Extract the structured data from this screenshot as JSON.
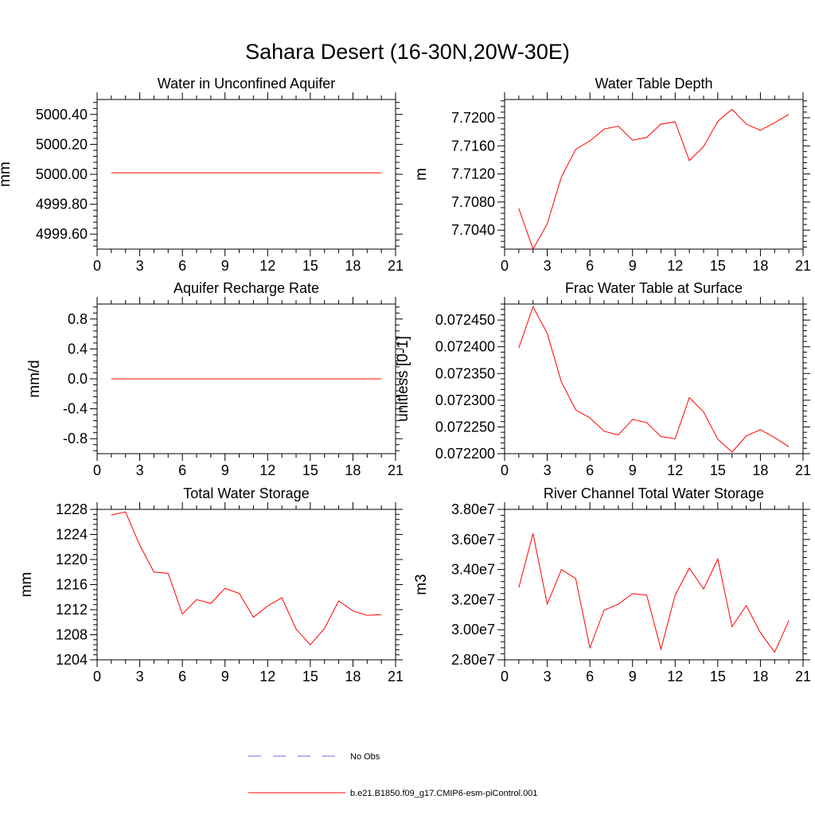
{
  "page": {
    "title": "Sahara Desert (16-30N,20W-30E)"
  },
  "legend": {
    "items": [
      {
        "label": "No Obs",
        "color": "#6b6bd6",
        "dash": true
      },
      {
        "label": "b.e21.B1850.f09_g17.CMIP6-esm-piControl.001",
        "color": "#ff0000",
        "dash": false
      }
    ]
  },
  "chart_data": [
    {
      "type": "line",
      "title": "Water in Unconfined Aquifer",
      "xlabel": "",
      "ylabel": "mm",
      "xlim": [
        0,
        21
      ],
      "ylim": [
        4999.5,
        5000.5
      ],
      "xticks": [
        0,
        3,
        6,
        9,
        12,
        15,
        18,
        21
      ],
      "yticks": [
        4999.6,
        4999.8,
        5000.0,
        5000.2,
        5000.4
      ],
      "ytick_labels": [
        "4999.60",
        "4999.80",
        "5000.00",
        "5000.20",
        "5000.40"
      ],
      "x": [
        1,
        2,
        3,
        4,
        5,
        6,
        7,
        8,
        9,
        10,
        11,
        12,
        13,
        14,
        15,
        16,
        17,
        18,
        19,
        20
      ],
      "series": [
        {
          "color": "#ff0000",
          "values": [
            5000.01,
            5000.01,
            5000.01,
            5000.01,
            5000.01,
            5000.01,
            5000.01,
            5000.01,
            5000.01,
            5000.01,
            5000.01,
            5000.01,
            5000.01,
            5000.01,
            5000.01,
            5000.01,
            5000.01,
            5000.01,
            5000.01,
            5000.01
          ]
        }
      ]
    },
    {
      "type": "line",
      "title": "Water Table Depth",
      "xlabel": "",
      "ylabel": "m",
      "xlim": [
        0,
        21
      ],
      "ylim": [
        7.7013,
        7.7226
      ],
      "xticks": [
        0,
        3,
        6,
        9,
        12,
        15,
        18,
        21
      ],
      "yticks": [
        7.704,
        7.708,
        7.712,
        7.716,
        7.72
      ],
      "ytick_labels": [
        "7.7040",
        "7.7080",
        "7.7120",
        "7.7160",
        "7.7200"
      ],
      "x": [
        1,
        2,
        3,
        4,
        5,
        6,
        7,
        8,
        9,
        10,
        11,
        12,
        13,
        14,
        15,
        16,
        17,
        18,
        19,
        20
      ],
      "series": [
        {
          "color": "#ff0000",
          "values": [
            7.7071,
            7.7013,
            7.7049,
            7.7116,
            7.7155,
            7.7167,
            7.7184,
            7.7188,
            7.7168,
            7.7172,
            7.7191,
            7.7194,
            7.7139,
            7.7159,
            7.7195,
            7.7212,
            7.7191,
            7.7182,
            7.7193,
            7.7205
          ]
        }
      ]
    },
    {
      "type": "line",
      "title": "Aquifer Recharge Rate",
      "xlabel": "",
      "ylabel": "mm/d",
      "xlim": [
        0,
        21
      ],
      "ylim": [
        -1.0,
        1.0
      ],
      "xticks": [
        0,
        3,
        6,
        9,
        12,
        15,
        18,
        21
      ],
      "yticks": [
        -0.8,
        -0.4,
        0.0,
        0.4,
        0.8
      ],
      "ytick_labels": [
        "-0.8",
        "-0.4",
        "0.0",
        "0.4",
        "0.8"
      ],
      "x": [
        1,
        2,
        3,
        4,
        5,
        6,
        7,
        8,
        9,
        10,
        11,
        12,
        13,
        14,
        15,
        16,
        17,
        18,
        19,
        20
      ],
      "series": [
        {
          "color": "#ff0000",
          "values": [
            0,
            0,
            0,
            0,
            0,
            0,
            0,
            0,
            0,
            0,
            0,
            0,
            0,
            0,
            0,
            0,
            0,
            0,
            0,
            0
          ]
        }
      ]
    },
    {
      "type": "line",
      "title": "Frac Water Table at Surface",
      "xlabel": "",
      "ylabel": "unitless [0-1]",
      "xlim": [
        0,
        21
      ],
      "ylim": [
        0.0722,
        0.07248
      ],
      "xticks": [
        0,
        3,
        6,
        9,
        12,
        15,
        18,
        21
      ],
      "yticks": [
        0.0722,
        0.07225,
        0.0723,
        0.07235,
        0.0724,
        0.07245
      ],
      "ytick_labels": [
        "0.072200",
        "0.072250",
        "0.072300",
        "0.072350",
        "0.072400",
        "0.072450"
      ],
      "x": [
        1,
        2,
        3,
        4,
        5,
        6,
        7,
        8,
        9,
        10,
        11,
        12,
        13,
        14,
        15,
        16,
        17,
        18,
        19,
        20
      ],
      "series": [
        {
          "color": "#ff0000",
          "values": [
            0.072398,
            0.072475,
            0.072425,
            0.072334,
            0.072282,
            0.072267,
            0.072242,
            0.072235,
            0.072264,
            0.072258,
            0.072232,
            0.072228,
            0.072305,
            0.072278,
            0.072227,
            0.072203,
            0.072233,
            0.072245,
            0.07223,
            0.072213
          ]
        }
      ]
    },
    {
      "type": "line",
      "title": "Total Water Storage",
      "xlabel": "",
      "ylabel": "mm",
      "xlim": [
        0,
        21
      ],
      "ylim": [
        1204,
        1228
      ],
      "xticks": [
        0,
        3,
        6,
        9,
        12,
        15,
        18,
        21
      ],
      "yticks": [
        1204,
        1208,
        1212,
        1216,
        1220,
        1224,
        1228
      ],
      "ytick_labels": [
        "1204",
        "1208",
        "1212",
        "1216",
        "1220",
        "1224",
        "1228"
      ],
      "x": [
        1,
        2,
        3,
        4,
        5,
        6,
        7,
        8,
        9,
        10,
        11,
        12,
        13,
        14,
        15,
        16,
        17,
        18,
        19,
        20
      ],
      "series": [
        {
          "color": "#ff0000",
          "values": [
            1227.1,
            1227.6,
            1222.3,
            1218.0,
            1217.8,
            1211.3,
            1213.6,
            1213.0,
            1215.4,
            1214.6,
            1210.8,
            1212.6,
            1213.9,
            1208.9,
            1206.4,
            1209.0,
            1213.4,
            1211.8,
            1211.1,
            1211.2
          ]
        }
      ]
    },
    {
      "type": "line",
      "title": "River Channel Total Water Storage",
      "xlabel": "",
      "ylabel": "m3",
      "xlim": [
        0,
        21
      ],
      "ylim": [
        28000000,
        38000000
      ],
      "xticks": [
        0,
        3,
        6,
        9,
        12,
        15,
        18,
        21
      ],
      "yticks": [
        28000000,
        30000000,
        32000000,
        34000000,
        36000000,
        38000000
      ],
      "ytick_labels": [
        "2.80e7",
        "3.00e7",
        "3.20e7",
        "3.40e7",
        "3.60e7",
        "3.80e7"
      ],
      "x": [
        1,
        2,
        3,
        4,
        5,
        6,
        7,
        8,
        9,
        10,
        11,
        12,
        13,
        14,
        15,
        16,
        17,
        18,
        19,
        20
      ],
      "series": [
        {
          "color": "#ff0000",
          "values": [
            32800000,
            36400000,
            31700000,
            34000000,
            33400000,
            28800000,
            31300000,
            31700000,
            32400000,
            32300000,
            28700000,
            32300000,
            34100000,
            32700000,
            34700000,
            30200000,
            31600000,
            29800000,
            28500000,
            30600000
          ]
        }
      ]
    }
  ]
}
